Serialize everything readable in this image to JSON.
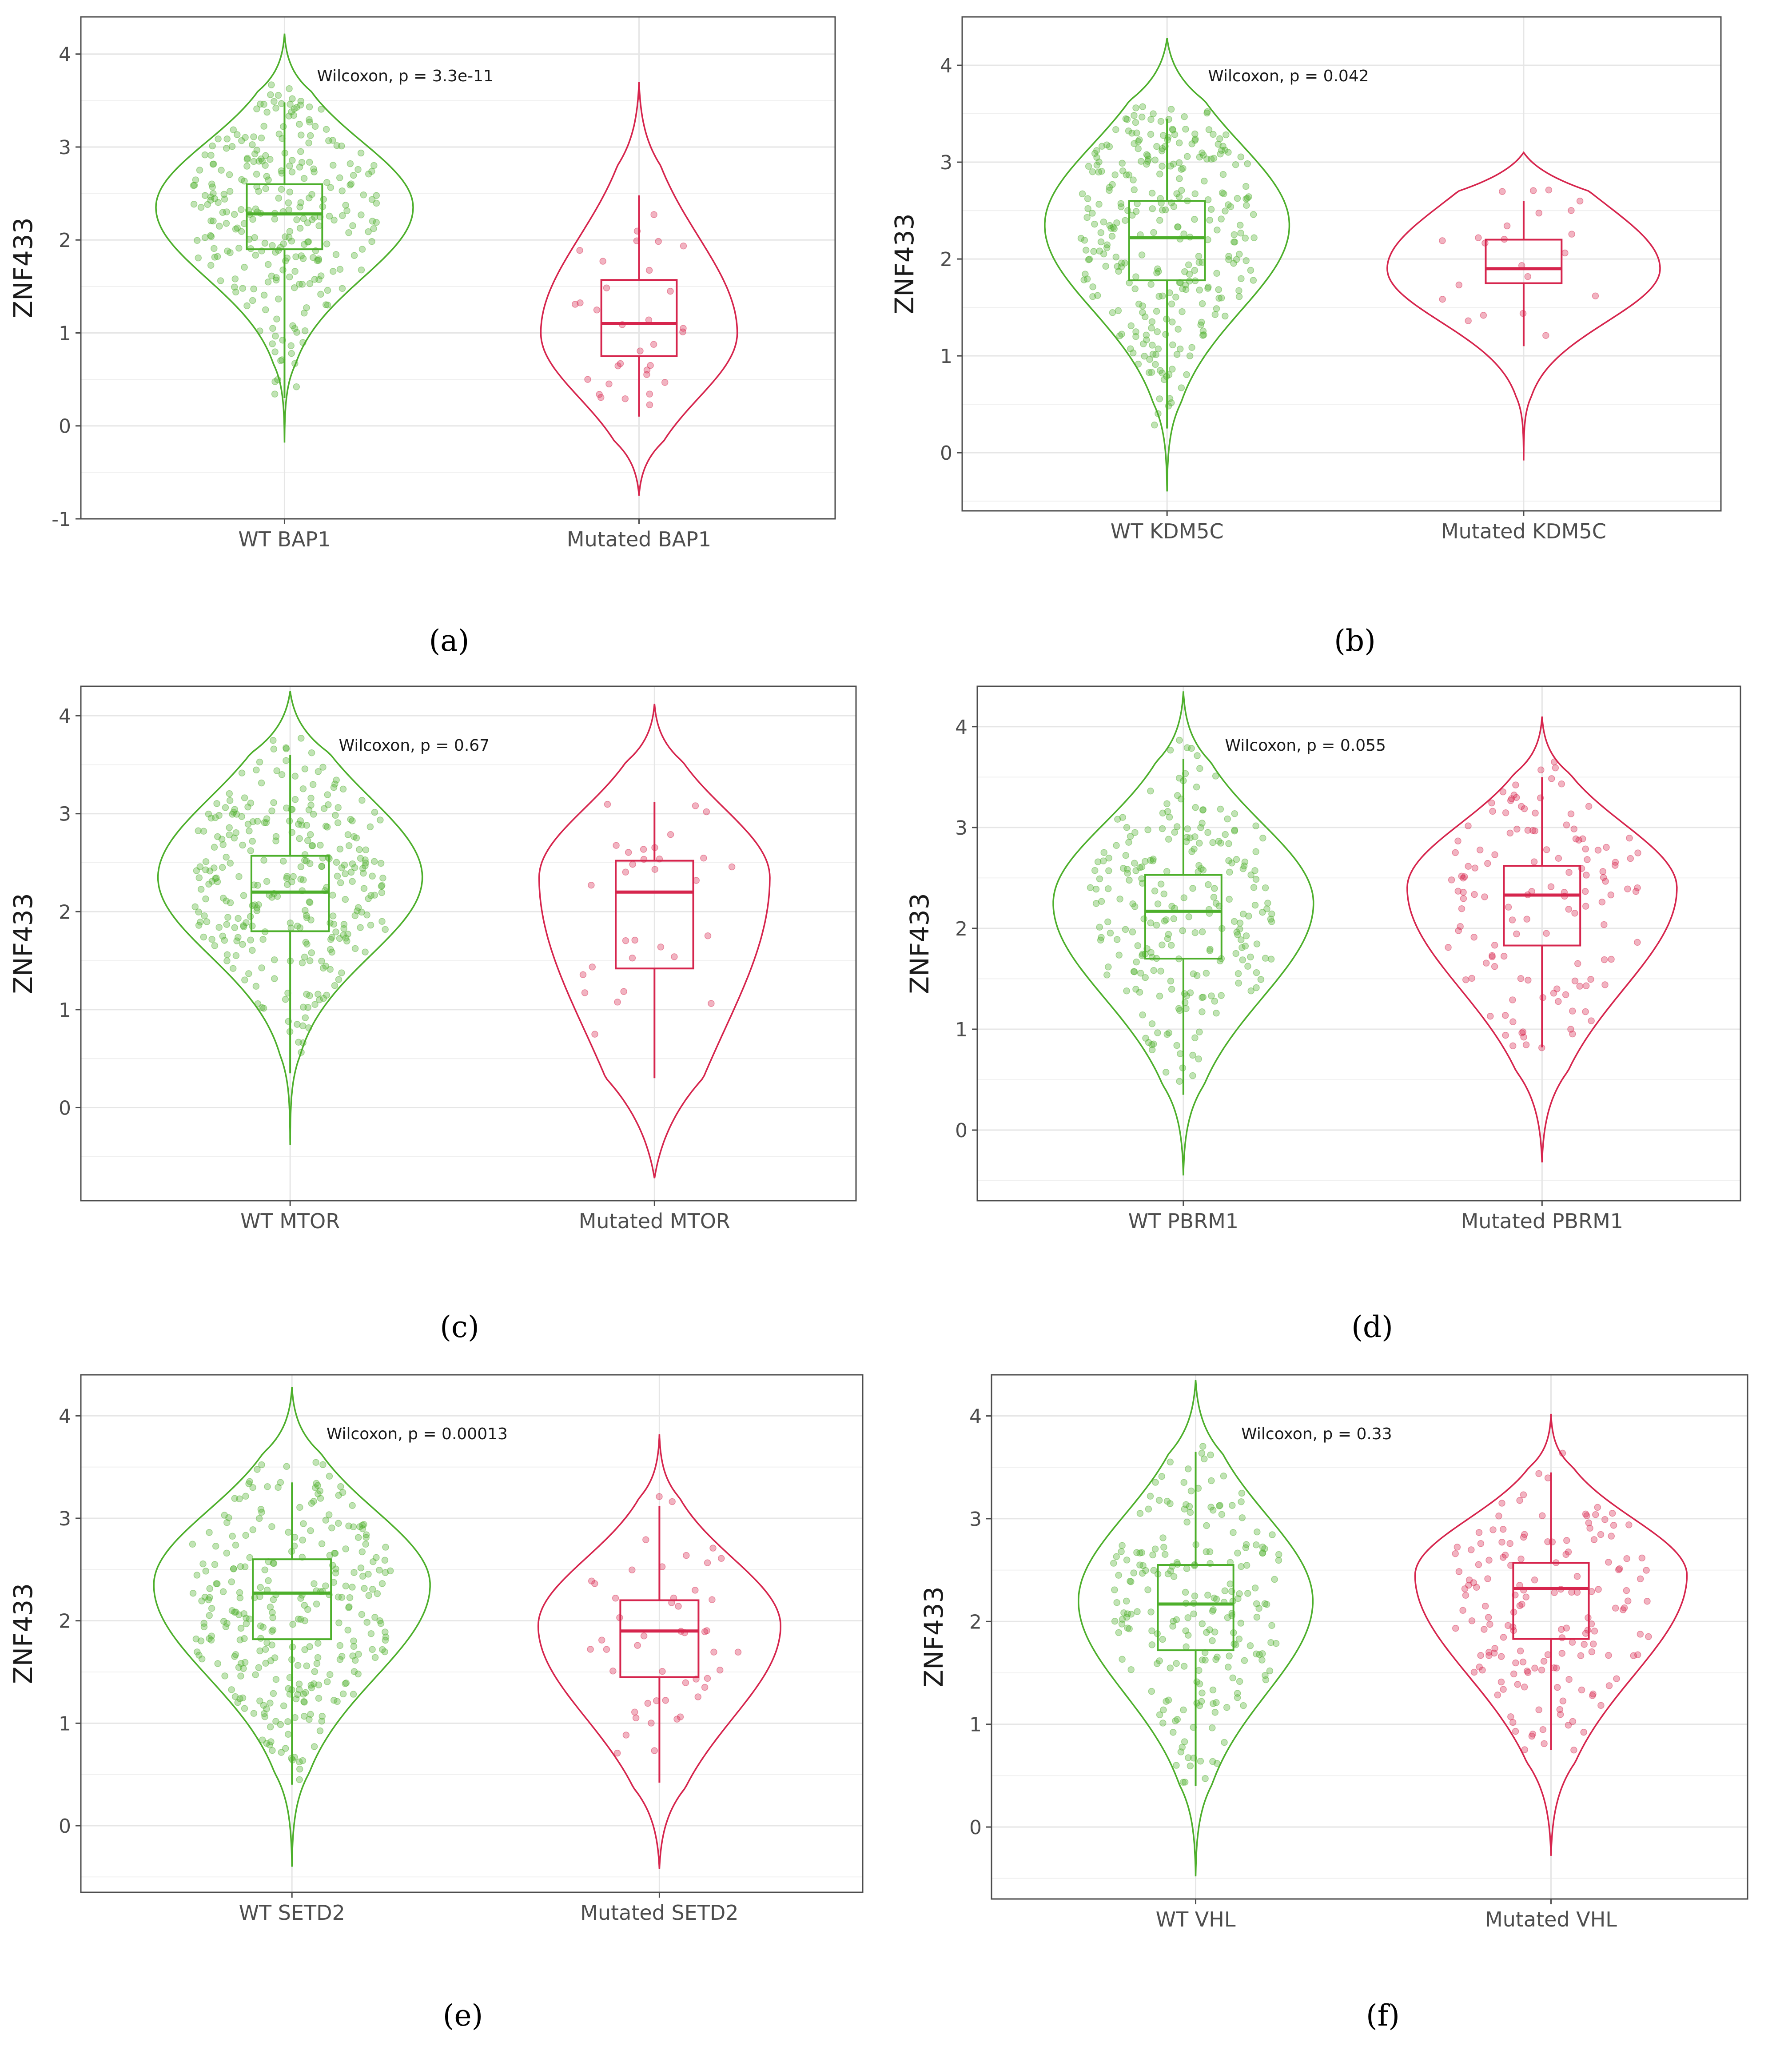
{
  "figure": {
    "colors": {
      "wt": "#4daf2b",
      "mutated": "#d6254d",
      "grid": "#e6e6e6",
      "frame": "#4d4d4d",
      "tick_text": "#4d4d4d"
    }
  },
  "chart_data": [
    {
      "type": "violin",
      "label": "(a)",
      "ylabel": "ZNF433",
      "annotation": "Wilcoxon, p = 3.3e-11",
      "ylim": [
        -1,
        4.4
      ],
      "yticks": [
        "-1",
        "0",
        "1",
        "2",
        "3",
        "4"
      ],
      "categories": [
        "WT BAP1",
        "Mutated BAP1"
      ],
      "groups": [
        {
          "name": "WT BAP1",
          "color": "#4daf2b",
          "min": 0.3,
          "q1": 1.9,
          "median": 2.28,
          "q3": 2.6,
          "max": 3.48,
          "viol_min": -0.18,
          "viol_max": 4.22,
          "mode": 2.35,
          "viol_width": 0.55,
          "n_points": 280
        },
        {
          "name": "Mutated BAP1",
          "color": "#d6254d",
          "min": 0.1,
          "q1": 0.75,
          "median": 1.1,
          "q3": 1.57,
          "max": 2.48,
          "viol_min": -0.75,
          "viol_max": 3.7,
          "mode": 1.0,
          "viol_width": 0.42,
          "n_points": 32
        }
      ]
    },
    {
      "type": "violin",
      "label": "(b)",
      "ylabel": "ZNF433",
      "annotation": "Wilcoxon, p = 0.042",
      "ylim": [
        -0.6,
        4.5
      ],
      "yticks": [
        "0",
        "1",
        "2",
        "3",
        "4"
      ],
      "categories": [
        "WT KDM5C",
        "Mutated KDM5C"
      ],
      "groups": [
        {
          "name": "WT KDM5C",
          "color": "#4daf2b",
          "min": 0.25,
          "q1": 1.78,
          "median": 2.22,
          "q3": 2.6,
          "max": 3.45,
          "viol_min": -0.4,
          "viol_max": 4.28,
          "mode": 2.35,
          "viol_width": 0.52,
          "n_points": 300
        },
        {
          "name": "Mutated KDM5C",
          "color": "#d6254d",
          "min": 1.1,
          "q1": 1.75,
          "median": 1.9,
          "q3": 2.2,
          "max": 2.6,
          "viol_min": -0.08,
          "viol_max": 3.1,
          "mode": 1.9,
          "viol_width": 0.58,
          "n_points": 22
        }
      ]
    },
    {
      "type": "violin",
      "label": "(c)",
      "ylabel": "ZNF433",
      "annotation": "Wilcoxon, p = 0.67",
      "ylim": [
        -0.95,
        4.3
      ],
      "yticks": [
        "0",
        "1",
        "2",
        "3",
        "4"
      ],
      "categories": [
        "WT MTOR",
        "Mutated MTOR"
      ],
      "groups": [
        {
          "name": "WT MTOR",
          "color": "#4daf2b",
          "min": 0.35,
          "q1": 1.8,
          "median": 2.2,
          "q3": 2.57,
          "max": 3.6,
          "viol_min": -0.38,
          "viol_max": 4.25,
          "mode": 2.35,
          "viol_width": 0.55,
          "n_points": 300
        },
        {
          "name": "Mutated MTOR",
          "color": "#d6254d",
          "min": 0.3,
          "q1": 1.42,
          "median": 2.2,
          "q3": 2.52,
          "max": 3.12,
          "viol_min": -0.72,
          "viol_max": 4.12,
          "mode": 2.35,
          "viol_width": 0.48,
          "n_points": 30
        }
      ]
    },
    {
      "type": "violin",
      "label": "(d)",
      "ylabel": "ZNF433",
      "annotation": "Wilcoxon, p = 0.055",
      "ylim": [
        -0.7,
        4.4
      ],
      "yticks": [
        "0",
        "1",
        "2",
        "3",
        "4"
      ],
      "categories": [
        "WT PBRM1",
        "Mutated PBRM1"
      ],
      "groups": [
        {
          "name": "WT PBRM1",
          "color": "#4daf2b",
          "min": 0.35,
          "q1": 1.7,
          "median": 2.17,
          "q3": 2.53,
          "max": 3.68,
          "viol_min": -0.45,
          "viol_max": 4.35,
          "mode": 2.25,
          "viol_width": 0.55,
          "n_points": 240
        },
        {
          "name": "Mutated PBRM1",
          "color": "#d6254d",
          "min": 0.82,
          "q1": 1.83,
          "median": 2.33,
          "q3": 2.62,
          "max": 3.5,
          "viol_min": -0.32,
          "viol_max": 4.1,
          "mode": 2.4,
          "viol_width": 0.57,
          "n_points": 130
        }
      ]
    },
    {
      "type": "violin",
      "label": "(e)",
      "ylabel": "ZNF433",
      "annotation": "Wilcoxon, p = 0.00013",
      "ylim": [
        -0.65,
        4.4
      ],
      "yticks": [
        "0",
        "1",
        "2",
        "3",
        "4"
      ],
      "categories": [
        "WT SETD2",
        "Mutated SETD2"
      ],
      "groups": [
        {
          "name": "WT SETD2",
          "color": "#4daf2b",
          "min": 0.4,
          "q1": 1.82,
          "median": 2.27,
          "q3": 2.6,
          "max": 3.35,
          "viol_min": -0.4,
          "viol_max": 4.28,
          "mode": 2.35,
          "viol_width": 0.57,
          "n_points": 300
        },
        {
          "name": "Mutated SETD2",
          "color": "#d6254d",
          "min": 0.42,
          "q1": 1.45,
          "median": 1.9,
          "q3": 2.2,
          "max": 3.12,
          "viol_min": -0.42,
          "viol_max": 3.82,
          "mode": 1.95,
          "viol_width": 0.5,
          "n_points": 48
        }
      ]
    },
    {
      "type": "violin",
      "label": "(f)",
      "ylabel": "ZNF433",
      "annotation": "Wilcoxon, p = 0.33",
      "ylim": [
        -0.7,
        4.4
      ],
      "yticks": [
        "0",
        "1",
        "2",
        "3",
        "4"
      ],
      "categories": [
        "WT VHL",
        "Mutated VHL"
      ],
      "groups": [
        {
          "name": "WT VHL",
          "color": "#4daf2b",
          "min": 0.4,
          "q1": 1.72,
          "median": 2.17,
          "q3": 2.55,
          "max": 3.65,
          "viol_min": -0.48,
          "viol_max": 4.35,
          "mode": 2.2,
          "viol_width": 0.5,
          "n_points": 220
        },
        {
          "name": "Mutated VHL",
          "color": "#d6254d",
          "min": 0.75,
          "q1": 1.83,
          "median": 2.32,
          "q3": 2.57,
          "max": 3.45,
          "viol_min": -0.28,
          "viol_max": 4.02,
          "mode": 2.45,
          "viol_width": 0.58,
          "n_points": 160
        }
      ]
    }
  ]
}
